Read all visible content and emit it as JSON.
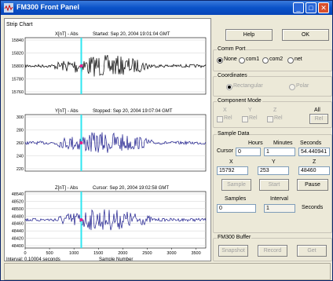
{
  "window": {
    "title": "FM300 Front Panel",
    "minimize": "_",
    "maximize": "□",
    "close": "✕"
  },
  "chart": {
    "heading": "Strip Chart",
    "x_label": "Sample Number",
    "interval_text": "Interval:  0.10004 seconds",
    "x_ticks": [
      "0",
      "500",
      "1000",
      "1500",
      "2000",
      "2500",
      "3000",
      "3500"
    ],
    "panels": [
      {
        "title": "X[nT] - Abs",
        "status": "Started: Sep 20, 2004 19:01:04 GMT",
        "y_ticks": [
          "15840",
          "15820",
          "15800",
          "15780",
          "15760"
        ],
        "color": "#000000"
      },
      {
        "title": "Y[nT] - Abs",
        "status": "Stopped: Sep 20, 2004 19:07:04 GMT",
        "y_ticks": [
          "300",
          "280",
          "260",
          "240",
          "220"
        ],
        "color": "#1a1a8c"
      },
      {
        "title": "Z[nT] - Abs",
        "status": "Cursor: Sep 20, 2004 19:02:58 GMT",
        "y_ticks": [
          "48540",
          "48520",
          "48500",
          "48480",
          "48460",
          "48440",
          "48420",
          "48400"
        ],
        "color": "#1a1a8c"
      }
    ],
    "cursor_color": "#2ee6f0",
    "marker_color": "#e0208c"
  },
  "buttons": {
    "help": "Help",
    "ok": "OK"
  },
  "comm_port": {
    "title": "Comm Port",
    "options": [
      "None",
      "com1",
      "com2",
      "net"
    ],
    "selected": "None"
  },
  "coordinates": {
    "title": "Coordinates",
    "options": [
      "Rectangular",
      "Polar"
    ]
  },
  "component_mode": {
    "title": "Component Mode",
    "columns": [
      "X",
      "Y",
      "Z",
      "All"
    ],
    "item_label": "Rel"
  },
  "sample_data": {
    "title": "Sample Data",
    "cursor_label": "Cursor",
    "hours_label": "Hours",
    "minutes_label": "Minutes",
    "seconds_label": "Seconds",
    "hours": "0",
    "minutes": "1",
    "seconds": "54.440941",
    "x_label": "X",
    "y_label": "Y",
    "z_label": "Z",
    "x": "15792",
    "y": "253",
    "z": "48460",
    "sample_btn": "Sample",
    "start_btn": "Start",
    "pause_btn": "Pause",
    "samples_label": "Samples",
    "interval_label": "Interval",
    "samples": "0",
    "interval": "1",
    "interval_unit": "Seconds"
  },
  "buffer": {
    "title": "FM300 Buffer",
    "snapshot": "Snapshot",
    "record": "Record",
    "get": "Get"
  }
}
